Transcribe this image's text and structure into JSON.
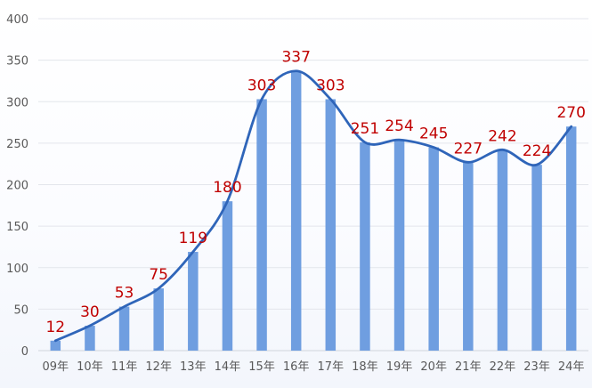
{
  "chart_data": {
    "type": "bar",
    "categories": [
      "09年",
      "10年",
      "11年",
      "12年",
      "13年",
      "14年",
      "15年",
      "16年",
      "17年",
      "18年",
      "19年",
      "20年",
      "21年",
      "22年",
      "23年",
      "24年"
    ],
    "series": [
      {
        "type": "bar",
        "values": [
          12,
          30,
          53,
          75,
          119,
          180,
          303,
          337,
          303,
          251,
          254,
          245,
          227,
          242,
          224,
          270
        ]
      },
      {
        "type": "line",
        "values": [
          12,
          30,
          53,
          75,
          119,
          180,
          303,
          337,
          303,
          251,
          254,
          245,
          227,
          242,
          224,
          270
        ]
      }
    ],
    "data_labels": [
      "12",
      "30",
      "53",
      "75",
      "119",
      "180",
      "303",
      "337",
      "303",
      "251",
      "254",
      "245",
      "227",
      "242",
      "224",
      "270"
    ],
    "y_ticks": [
      "0",
      "50",
      "100",
      "150",
      "200",
      "250",
      "300",
      "350",
      "400"
    ],
    "ylim": [
      0,
      400
    ],
    "grid": true,
    "legend": "none",
    "colors": {
      "bar": "#6f9ee0",
      "line": "#2f65b9",
      "data_label": "#c00000",
      "tick_label": "#595959",
      "grid": "#e3e6ec"
    }
  }
}
